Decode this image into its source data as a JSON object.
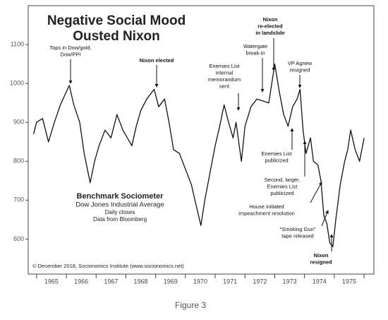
{
  "chart_data": {
    "type": "line",
    "title": [
      "Negative Social Mood",
      "Ousted Nixon"
    ],
    "subtitle": [
      "Benchmark Sociometer",
      "Dow Jones Industrial Average",
      "Daily closes",
      "Data from Bloomberg"
    ],
    "credit": "© December 2018, Socionomics Institute (www.socionomics.net)",
    "caption": "Figure 3",
    "color": "#111111",
    "xlim": [
      1964.72,
      1976.33
    ],
    "ylim": [
      510,
      1200
    ],
    "yticks": [
      600,
      700,
      800,
      900,
      1000,
      1100
    ],
    "xticks": [
      1965,
      1966,
      1967,
      1968,
      1969,
      1970,
      1971,
      1972,
      1973,
      1974,
      1975,
      1976
    ],
    "xtick_labels": [
      {
        "value": 1965.5,
        "label": "1965"
      },
      {
        "value": 1966.5,
        "label": "1966"
      },
      {
        "value": 1967.5,
        "label": "1967"
      },
      {
        "value": 1968.5,
        "label": "1968"
      },
      {
        "value": 1969.5,
        "label": "1969"
      },
      {
        "value": 1970.5,
        "label": "1970"
      },
      {
        "value": 1971.5,
        "label": "1971"
      },
      {
        "value": 1972.5,
        "label": "1972"
      },
      {
        "value": 1973.5,
        "label": "1973"
      },
      {
        "value": 1974.5,
        "label": "1974"
      },
      {
        "value": 1975.5,
        "label": "1975"
      }
    ],
    "x": [
      1964.9,
      1965.0,
      1965.2,
      1965.4,
      1965.6,
      1965.8,
      1966.1,
      1966.25,
      1966.45,
      1966.6,
      1966.8,
      1966.95,
      1967.1,
      1967.3,
      1967.5,
      1967.7,
      1967.9,
      1968.2,
      1968.35,
      1968.5,
      1968.7,
      1968.95,
      1969.1,
      1969.3,
      1969.45,
      1969.6,
      1969.8,
      1970.0,
      1970.2,
      1970.35,
      1970.52,
      1970.65,
      1970.8,
      1971.0,
      1971.15,
      1971.3,
      1971.45,
      1971.6,
      1971.7,
      1971.88,
      1972.0,
      1972.2,
      1972.4,
      1972.6,
      1972.8,
      1973.0,
      1973.15,
      1973.3,
      1973.45,
      1973.6,
      1973.75,
      1973.85,
      1973.95,
      1974.05,
      1974.2,
      1974.3,
      1974.45,
      1974.55,
      1974.65,
      1974.75,
      1974.85,
      1974.95,
      1975.05,
      1975.2,
      1975.35,
      1975.45,
      1975.55,
      1975.7,
      1975.85,
      1976.0
    ],
    "values": [
      870,
      900,
      910,
      850,
      900,
      945,
      995,
      945,
      900,
      820,
      745,
      800,
      840,
      880,
      860,
      920,
      880,
      840,
      890,
      930,
      960,
      985,
      940,
      960,
      900,
      830,
      820,
      780,
      740,
      690,
      635,
      700,
      760,
      840,
      890,
      945,
      900,
      860,
      900,
      800,
      890,
      940,
      960,
      955,
      950,
      1050,
      980,
      920,
      890,
      940,
      960,
      985,
      880,
      820,
      860,
      800,
      790,
      750,
      660,
      640,
      590,
      580,
      650,
      740,
      800,
      830,
      880,
      830,
      800,
      860
    ],
    "annotations": [
      {
        "lines": [
          "Tops in Dow/gold,",
          "Dow/PPI"
        ]
      },
      {
        "lines": [
          "Nixon elected"
        ],
        "bold": true
      },
      {
        "lines": [
          "Enemies List",
          "internal",
          "memorandum",
          "sent"
        ]
      },
      {
        "lines": [
          "Watergate",
          "break-in"
        ]
      },
      {
        "lines": [
          "Nixon",
          "re-elected",
          "in landslide"
        ],
        "bold": true
      },
      {
        "lines": [
          "VP Agnew",
          "resigned"
        ]
      },
      {
        "lines": [
          "Enemies List",
          "publicized"
        ]
      },
      {
        "lines": [
          "Second, larger,",
          "Enemies List",
          "publicized"
        ]
      },
      {
        "lines": [
          "House initiated",
          "impeachment resolution"
        ]
      },
      {
        "lines": [
          "\"Smoking Gun\"",
          "tape released"
        ]
      },
      {
        "lines": [
          "Nixon",
          "resigned"
        ],
        "bold": true
      }
    ]
  }
}
